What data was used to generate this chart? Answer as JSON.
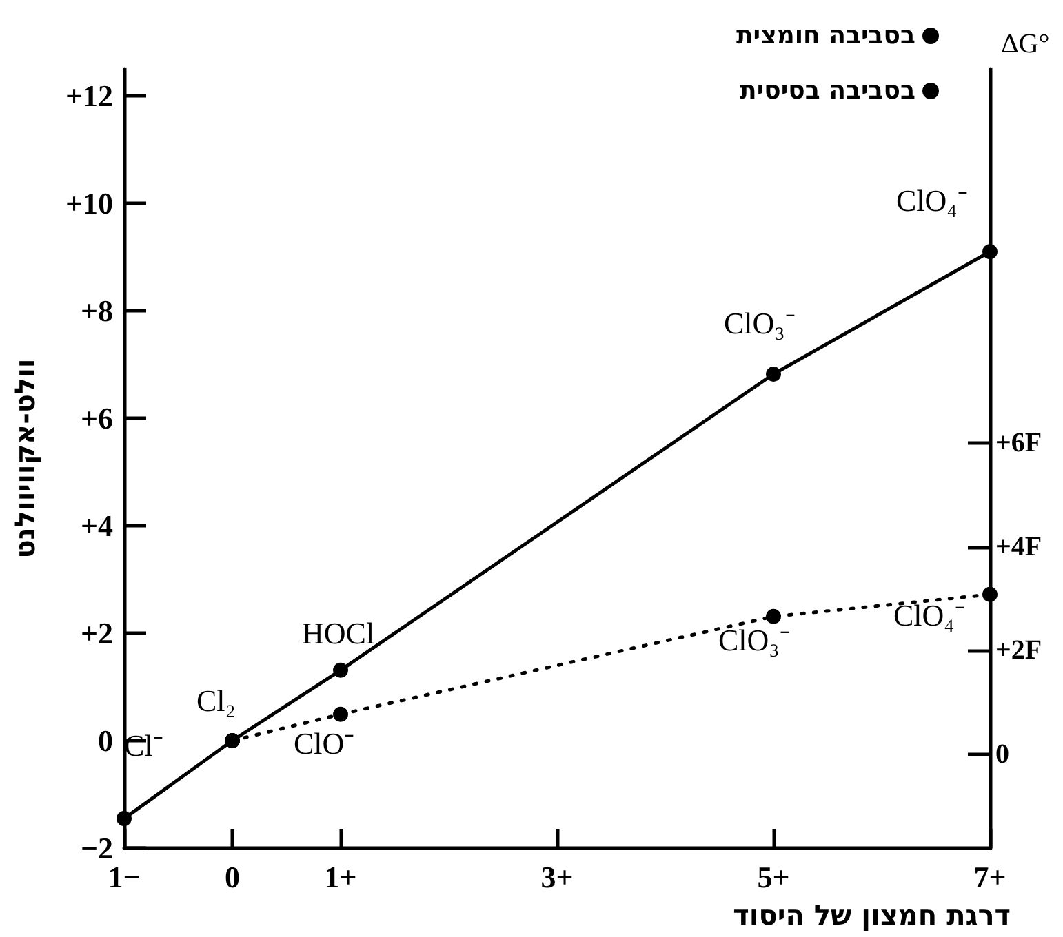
{
  "chart_data": {
    "type": "line",
    "xlabel": "דרגת חמצון של היסוד",
    "ylabel": "וולט-אקוויוולנט",
    "y2label": "ΔG°",
    "xlim": [
      -1,
      7
    ],
    "xticks": [
      {
        "value": -1,
        "label": "1−"
      },
      0,
      {
        "value": 1,
        "label": "1+"
      },
      {
        "value": 3,
        "label": "3+"
      },
      {
        "value": 5,
        "label": "5+"
      },
      {
        "value": 7,
        "label": "7+"
      }
    ],
    "ylim": [
      -2,
      12.5
    ],
    "yticks": [
      {
        "value": -2,
        "label": "−2"
      },
      0,
      {
        "value": 2,
        "label": "+2"
      },
      {
        "value": 4,
        "label": "+4"
      },
      {
        "value": 6,
        "label": "+6"
      },
      {
        "value": 8,
        "label": "+8"
      },
      {
        "value": 10,
        "label": "+10"
      },
      {
        "value": 12,
        "label": "+12"
      }
    ],
    "y2lim": [
      -1.8,
      13.2
    ],
    "y2ticks": [
      0,
      {
        "value": 2,
        "label": "+2F"
      },
      {
        "value": 4,
        "label": "+4F"
      },
      {
        "value": 6,
        "label": "+6F"
      }
    ],
    "grid": false,
    "legend": "top right",
    "marker": "circle",
    "series": [
      {
        "name": "בסביבה חומצית",
        "color": "#000000",
        "line_style": "solid",
        "x": [
          -1,
          0,
          1,
          5,
          7
        ],
        "values": [
          -1.45,
          0,
          1.31,
          6.82,
          9.1
        ]
      },
      {
        "name": "בסביבה בסיסית",
        "color": "#000000",
        "line_style": "dotted",
        "x": [
          0,
          1,
          5,
          7
        ],
        "values": [
          0,
          0.49,
          2.31,
          2.72
        ]
      }
    ],
    "annotations": [
      {
        "text": "Cl⁻",
        "x": -1,
        "y": -1.45
      },
      {
        "text": "Cl₂",
        "x": 0,
        "y": 0
      },
      {
        "text": "HOCl",
        "x": 1,
        "y": 1.31
      },
      {
        "text": "ClO⁻",
        "x": 1,
        "y": 0.49
      },
      {
        "text": "ClO₃⁻",
        "x": 5,
        "y": 6.82
      },
      {
        "text": "ClO₄⁻",
        "x": 7,
        "y": 9.1
      },
      {
        "text": "ClO₃⁻",
        "x": 5,
        "y": 2.31
      },
      {
        "text": "ClO₄⁻",
        "x": 7,
        "y": 2.72
      }
    ]
  }
}
